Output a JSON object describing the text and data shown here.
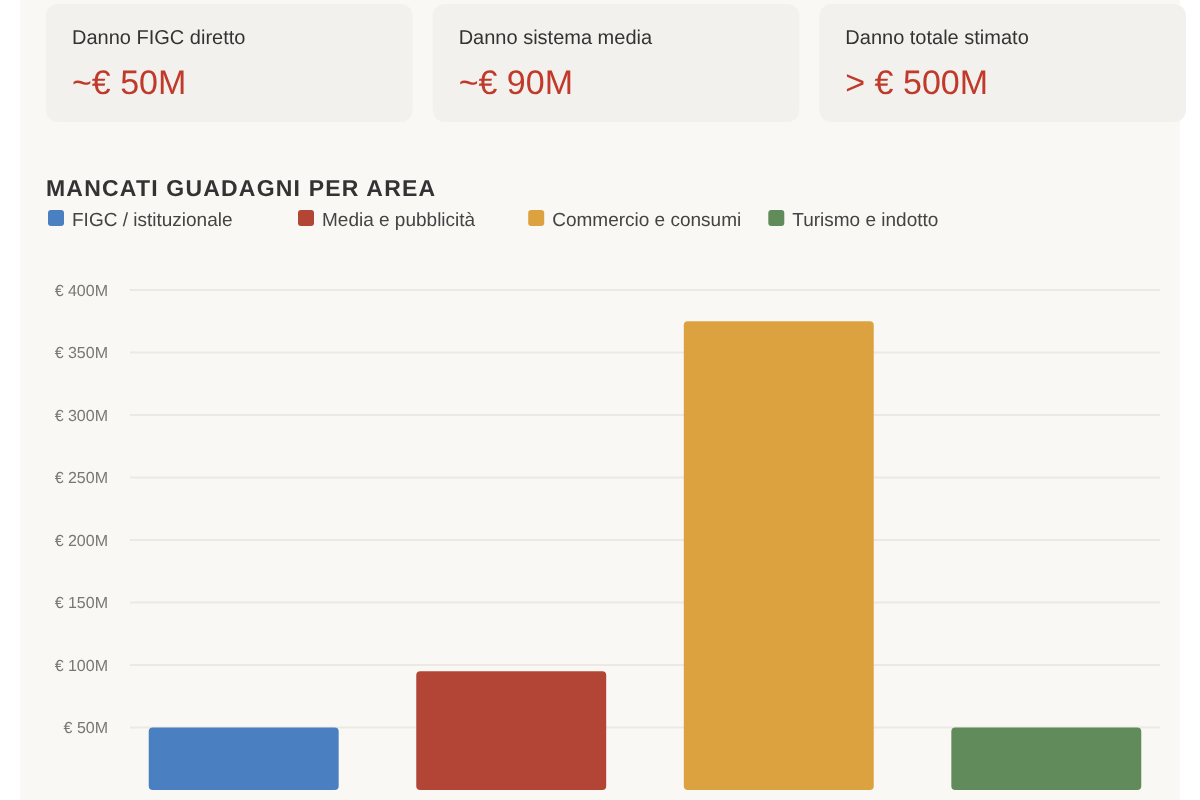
{
  "chart_data": [
    {
      "type": "other",
      "annotations": [
        "Danno FIGC diretto",
        "~€ 50M",
        "Danno sistema media",
        "~€ 90M",
        "Danno totale stimato",
        "> € 500M"
      ]
    },
    {
      "type": "bar",
      "title": "MANCATI GUADAGNI PER AREA",
      "categories": [
        null
      ],
      "series": [
        {
          "name": "FIGC / istituzionale",
          "color": "#4a7fc1",
          "values": [
            50
          ]
        },
        {
          "name": "Media e pubblicità",
          "color": "#b24535",
          "values": [
            95
          ]
        },
        {
          "name": "Commercio e consumi",
          "color": "#dca240",
          "values": [
            375
          ]
        },
        {
          "name": "Turismo e indotto",
          "color": "#628b5c",
          "values": [
            50
          ]
        }
      ],
      "ylim": [
        0,
        400
      ],
      "yticks": [
        {
          "value": 50,
          "label": "€ 50M"
        },
        {
          "value": 100,
          "label": "€ 100M"
        },
        {
          "value": 150,
          "label": "€ 150M"
        },
        {
          "value": 200,
          "label": "€ 200M"
        },
        {
          "value": 250,
          "label": "€ 250M"
        },
        {
          "value": 300,
          "label": "€ 300M"
        },
        {
          "value": 350,
          "label": "€ 350M"
        },
        {
          "value": 400,
          "label": "€ 400M"
        }
      ],
      "grid": "y",
      "legend": "top left",
      "tick_labels": "y"
    }
  ]
}
